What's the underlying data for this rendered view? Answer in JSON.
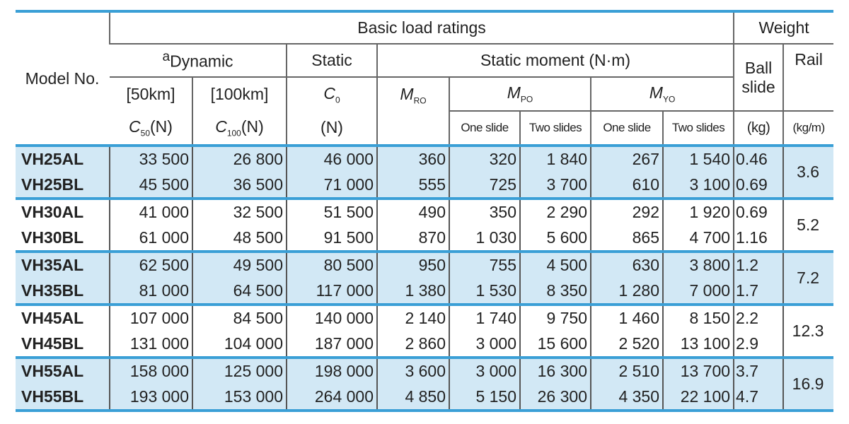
{
  "header": {
    "model": "Model No.",
    "basic": "Basic load ratings",
    "weight": "Weight",
    "dynamic": {
      "mark": "a",
      "label": "Dynamic"
    },
    "static": "Static",
    "moment": "Static moment (N·m)",
    "ball_slide": "Ball slide",
    "rail": "Rail",
    "c50": {
      "range": "[50km]",
      "main": "C",
      "sub": "50",
      "unit": "(N)"
    },
    "c100": {
      "range": "[100km]",
      "main": "C",
      "sub": "100",
      "unit": "(N)"
    },
    "c0": {
      "main": "C",
      "sub": "0",
      "unit": "(N)"
    },
    "mr": {
      "main": "M",
      "sub": "RO"
    },
    "mp": {
      "main": "M",
      "sub": "PO"
    },
    "my": {
      "main": "M",
      "sub": "YO"
    },
    "one": "One slide",
    "two": "Two slides",
    "kg": "(kg)",
    "kgm": "(kg/m)"
  },
  "groups": [
    {
      "rail": "3.6",
      "rows": [
        {
          "model": "VH25AL",
          "cells": [
            "33 500",
            "26 800",
            "46 000",
            "360",
            "320",
            "1 840",
            "267",
            "1 540",
            "0.46"
          ]
        },
        {
          "model": "VH25BL",
          "cells": [
            "45 500",
            "36 500",
            "71 000",
            "555",
            "725",
            "3 700",
            "610",
            "3 100",
            "0.69"
          ]
        }
      ]
    },
    {
      "rail": "5.2",
      "rows": [
        {
          "model": "VH30AL",
          "cells": [
            "41 000",
            "32 500",
            "51 500",
            "490",
            "350",
            "2 290",
            "292",
            "1 920",
            "0.69"
          ]
        },
        {
          "model": "VH30BL",
          "cells": [
            "61 000",
            "48 500",
            "91 500",
            "870",
            "1 030",
            "5 600",
            "865",
            "4 700",
            "1.16"
          ]
        }
      ]
    },
    {
      "rail": "7.2",
      "rows": [
        {
          "model": "VH35AL",
          "cells": [
            "62 500",
            "49 500",
            "80 500",
            "950",
            "755",
            "4 500",
            "630",
            "3 800",
            "1.2"
          ]
        },
        {
          "model": "VH35BL",
          "cells": [
            "81 000",
            "64 500",
            "117 000",
            "1 380",
            "1 530",
            "8 350",
            "1 280",
            "7 000",
            "1.7"
          ]
        }
      ]
    },
    {
      "rail": "12.3",
      "rows": [
        {
          "model": "VH45AL",
          "cells": [
            "107 000",
            "84 500",
            "140 000",
            "2 140",
            "1 740",
            "9 750",
            "1 460",
            "8 150",
            "2.2"
          ]
        },
        {
          "model": "VH45BL",
          "cells": [
            "131 000",
            "104 000",
            "187 000",
            "2 860",
            "3 000",
            "15 600",
            "2 520",
            "13 100",
            "2.9"
          ]
        }
      ]
    },
    {
      "rail": "16.9",
      "rows": [
        {
          "model": "VH55AL",
          "cells": [
            "158 000",
            "125 000",
            "198 000",
            "3 600",
            "3 000",
            "16 300",
            "2 510",
            "13 700",
            "3.7"
          ]
        },
        {
          "model": "VH55BL",
          "cells": [
            "193 000",
            "153 000",
            "264 000",
            "4 850",
            "5 150",
            "26 300",
            "4 350",
            "22 100",
            "4.7"
          ]
        }
      ]
    }
  ]
}
